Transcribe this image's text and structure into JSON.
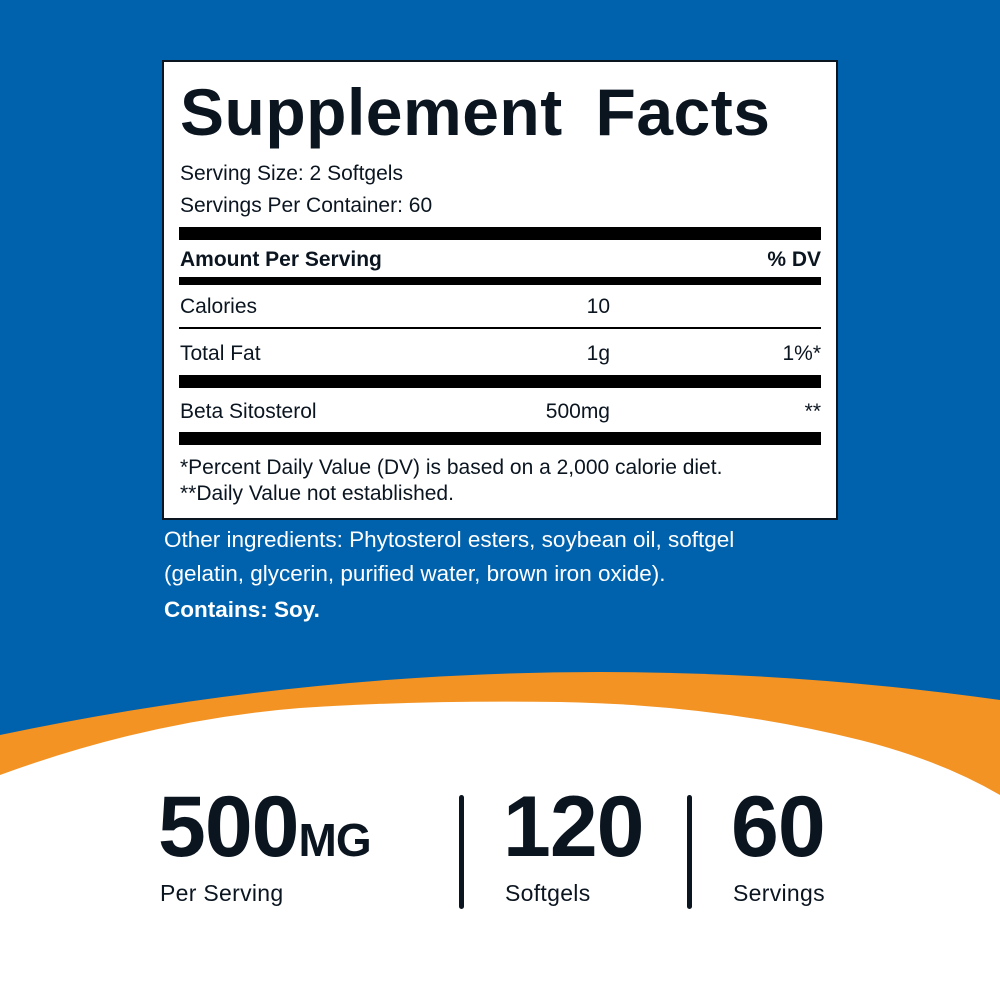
{
  "colors": {
    "background_blue": "#0062ad",
    "accent_orange": "#f39323",
    "text_dark": "#0b1520"
  },
  "label": {
    "title": "Supplement Facts",
    "serving_size": "Serving Size: 2 Softgels",
    "servings_per_container": "Servings Per Container: 60",
    "header": {
      "amount": "Amount Per Serving",
      "dv": "% DV"
    },
    "rows": [
      {
        "name": "Calories",
        "amount": "10",
        "dv": ""
      },
      {
        "name": "Total Fat",
        "amount": "1g",
        "dv": "1%*"
      },
      {
        "name": "Beta Sitosterol",
        "amount": "500mg",
        "dv": "**"
      }
    ],
    "footnotes": [
      "*Percent Daily Value (DV) is based on a 2,000 calorie diet.",
      "**Daily Value not established."
    ]
  },
  "other_ingredients": {
    "line1": "Other ingredients: Phytosterol esters, soybean oil, softgel",
    "line2": "(gelatin, glycerin, purified water, brown iron oxide).",
    "contains": "Contains: Soy."
  },
  "stats": [
    {
      "value": "500",
      "unit": "MG",
      "label": "Per Serving"
    },
    {
      "value": "120",
      "unit": "",
      "label": "Softgels"
    },
    {
      "value": "60",
      "unit": "",
      "label": "Servings"
    }
  ]
}
